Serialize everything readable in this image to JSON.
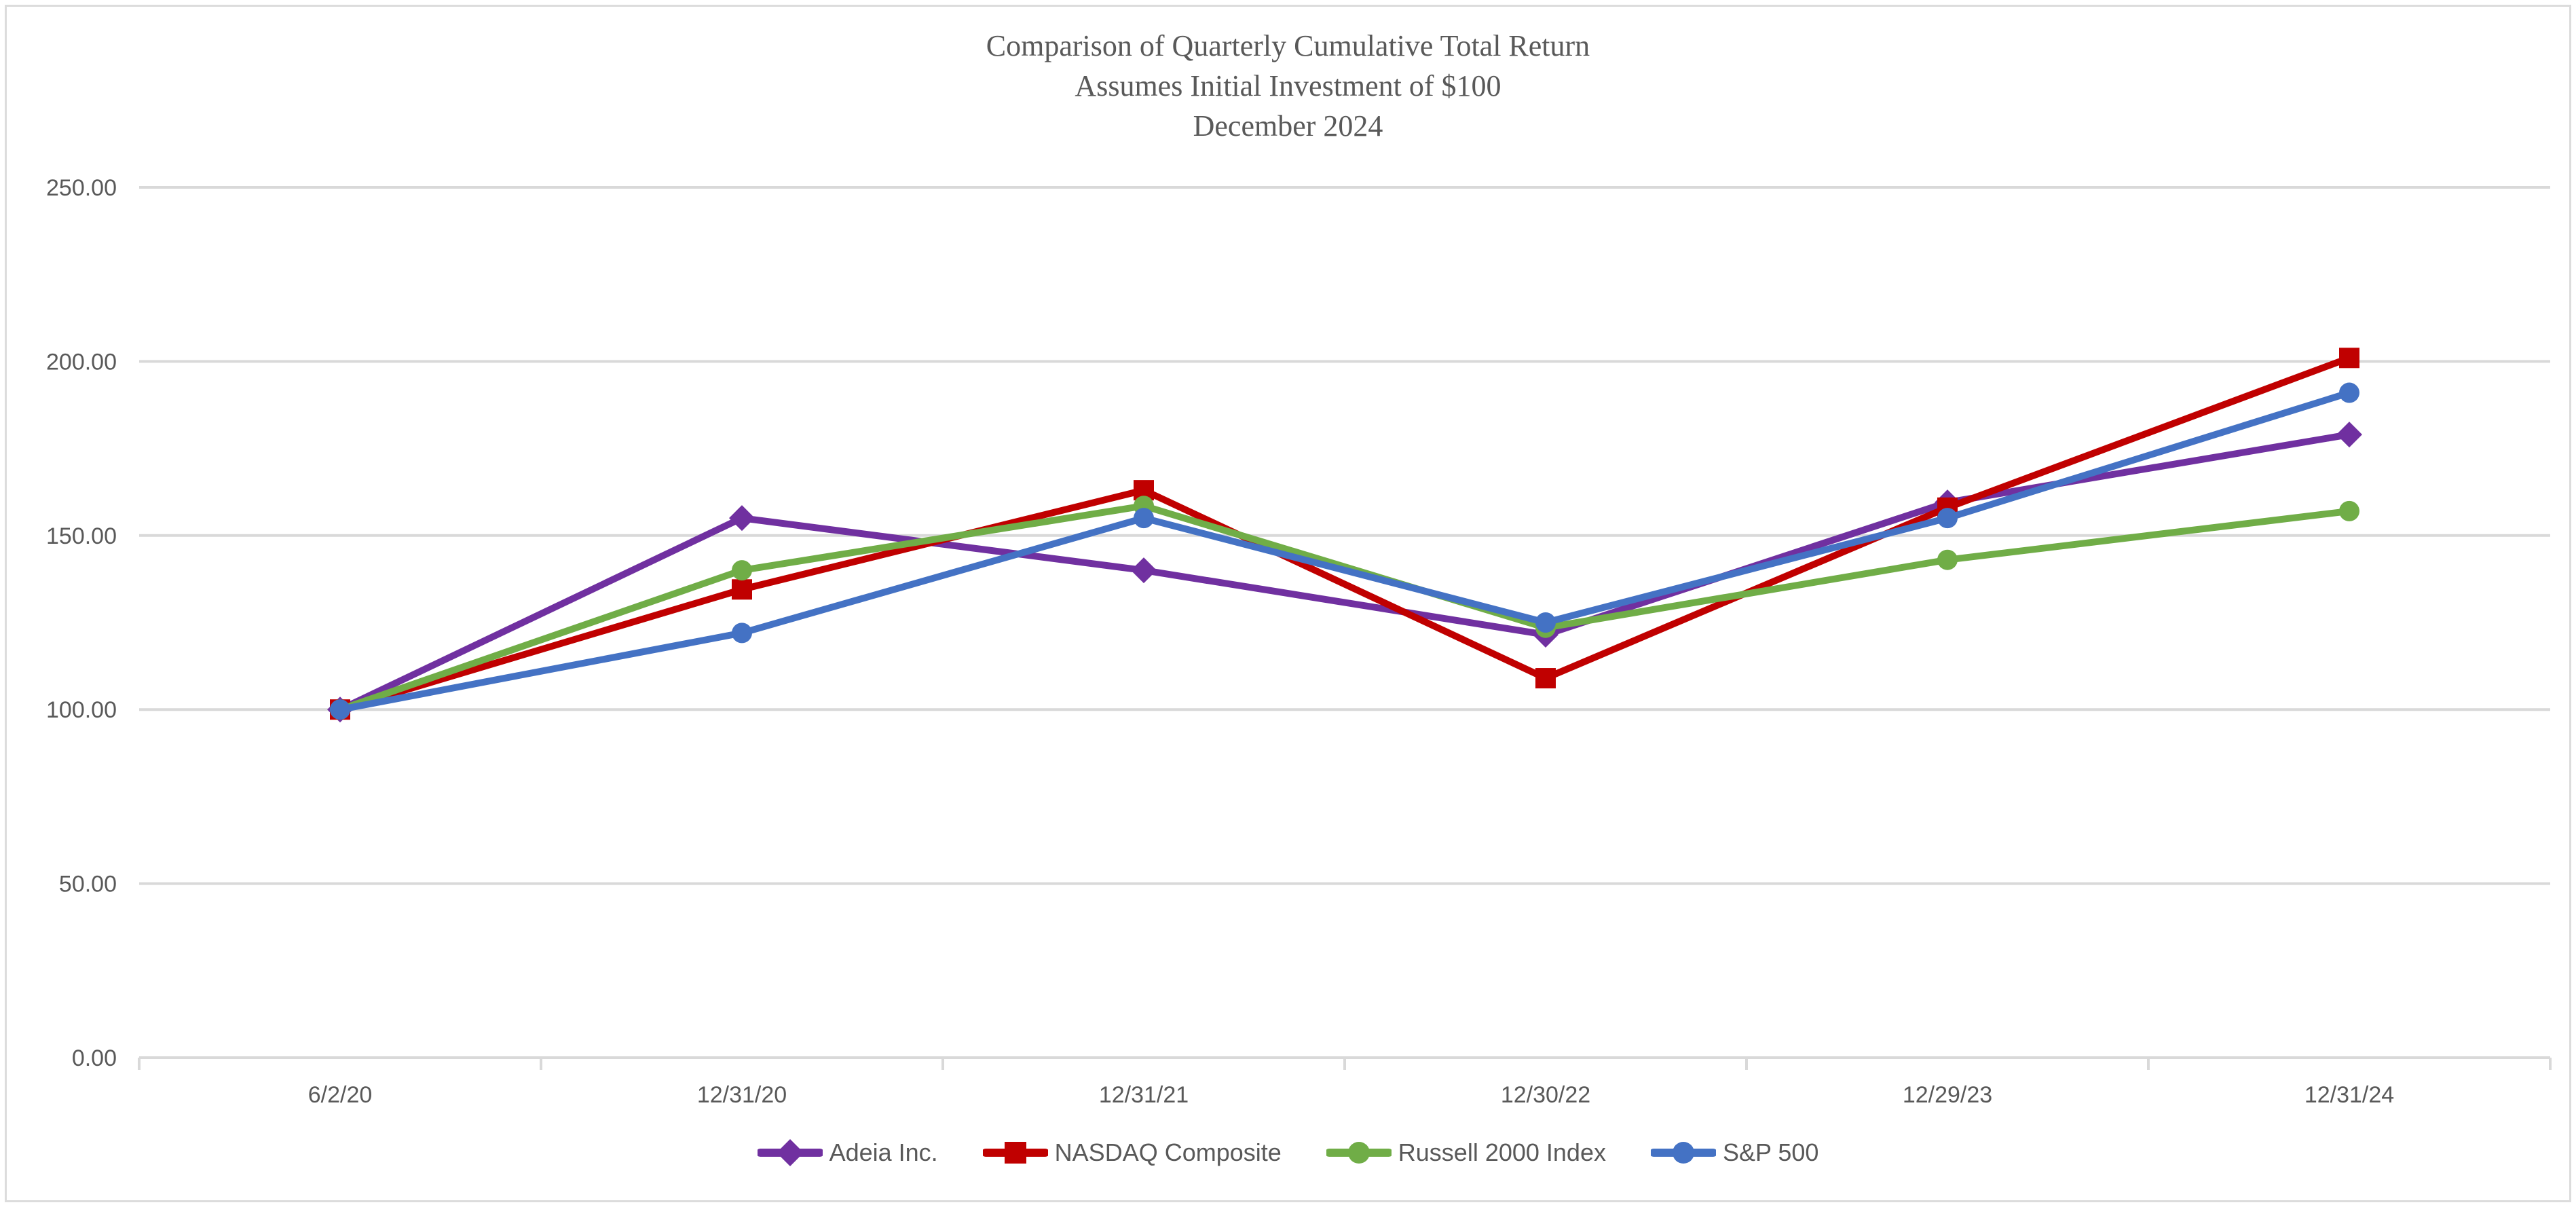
{
  "chart_data": {
    "type": "line",
    "title": "Comparison of Quarterly Cumulative Total Return",
    "subtitle": "Assumes Initial Investment of $100",
    "date_line": "December 2024",
    "categories": [
      "6/2/20",
      "12/31/20",
      "12/31/21",
      "12/30/22",
      "12/29/23",
      "12/31/24"
    ],
    "series": [
      {
        "name": "Adeia Inc.",
        "color": "#7030A0",
        "marker": "diamond",
        "values": [
          100.0,
          155.0,
          140.0,
          121.5,
          159.5,
          179.0
        ]
      },
      {
        "name": "NASDAQ Composite",
        "color": "#C00000",
        "marker": "square",
        "values": [
          100.0,
          134.5,
          163.0,
          109.0,
          158.0,
          201.0
        ]
      },
      {
        "name": "Russell 2000 Index",
        "color": "#70AD47",
        "marker": "circle",
        "values": [
          100.0,
          140.0,
          158.5,
          123.5,
          143.0,
          157.0
        ]
      },
      {
        "name": "S&P 500",
        "color": "#4472C4",
        "marker": "circle",
        "values": [
          100.0,
          122.0,
          155.0,
          125.0,
          155.0,
          191.0
        ]
      }
    ],
    "y_axis": {
      "tick_labels": [
        "0.00",
        "50.00",
        "100.00",
        "150.00",
        "200.00",
        "250.00"
      ],
      "tick_values": [
        0,
        50,
        100,
        150,
        200,
        250
      ],
      "ylim": [
        0,
        250
      ]
    },
    "xlabel": "",
    "ylabel": "",
    "grid": true,
    "legend_position": "bottom",
    "gridline_color": "#D9D9D9",
    "text_color": "#595959"
  }
}
